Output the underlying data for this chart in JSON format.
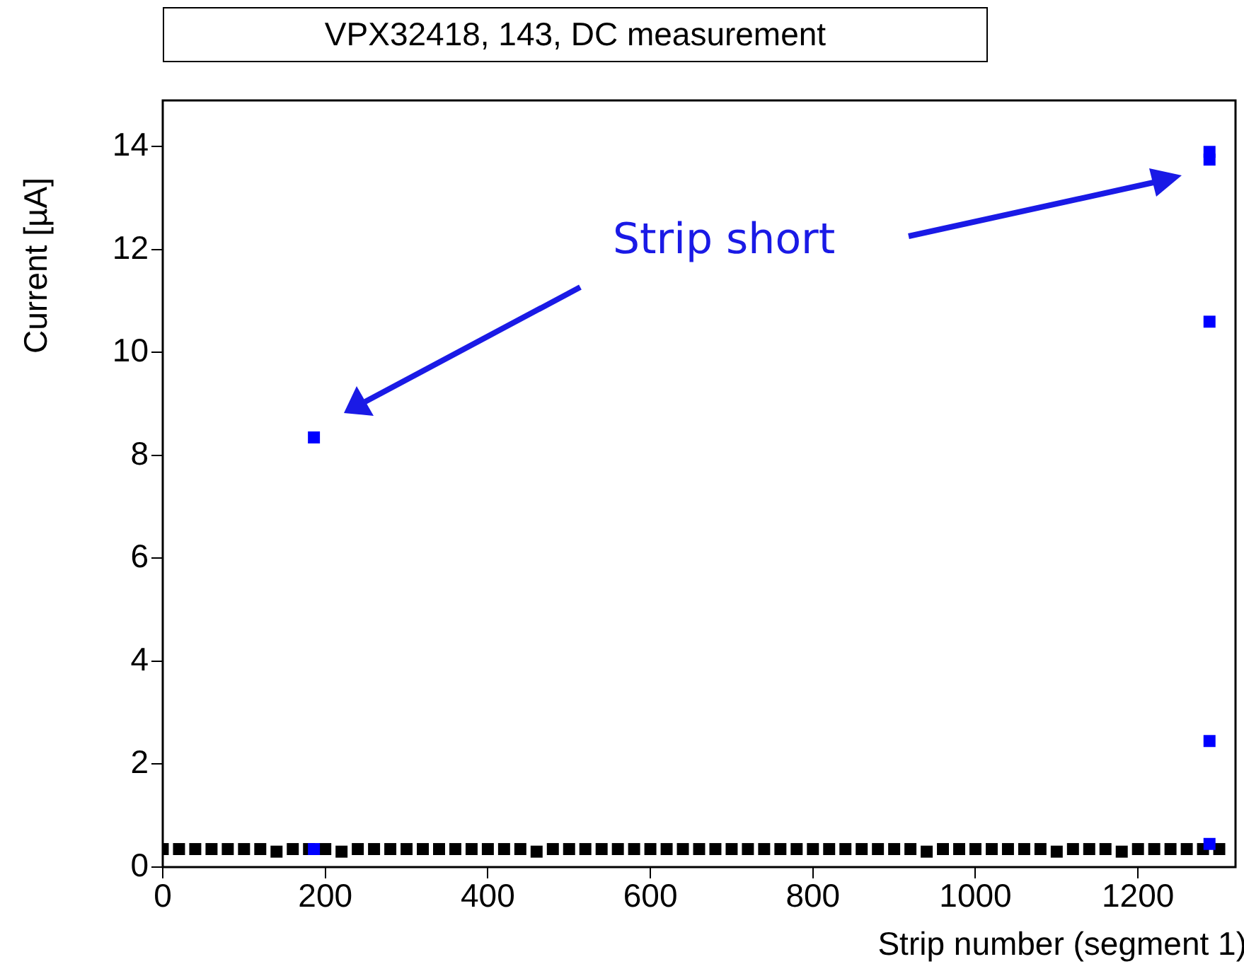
{
  "chart_data": {
    "type": "scatter",
    "title": "VPX32418, 143, DC measurement",
    "xlabel": "Strip number (segment 1)",
    "ylabel": "Current [µA]",
    "annotations": [
      "Strip short"
    ],
    "xlim": [
      0,
      1320
    ],
    "xticks": [
      0,
      200,
      400,
      600,
      800,
      1000,
      1200
    ],
    "ylim": [
      0,
      14.9
    ],
    "yticks": [
      0,
      2,
      4,
      6,
      8,
      10,
      12,
      14
    ],
    "grid": false,
    "legend": false,
    "marker": "square",
    "series": [
      {
        "color": "#000000",
        "x": [
          0,
          20,
          40,
          60,
          80,
          100,
          120,
          140,
          160,
          180,
          200,
          220,
          240,
          260,
          280,
          300,
          320,
          340,
          360,
          380,
          400,
          420,
          440,
          460,
          480,
          500,
          520,
          540,
          560,
          580,
          600,
          620,
          640,
          660,
          680,
          700,
          720,
          740,
          760,
          780,
          800,
          820,
          840,
          860,
          880,
          900,
          920,
          940,
          960,
          980,
          1000,
          1020,
          1040,
          1060,
          1080,
          1100,
          1120,
          1140,
          1160,
          1180,
          1200,
          1220,
          1240,
          1260,
          1280,
          1300
        ],
        "values": [
          0.35,
          0.35,
          0.35,
          0.35,
          0.35,
          0.35,
          0.35,
          0.3,
          0.35,
          0.35,
          0.35,
          0.3,
          0.35,
          0.35,
          0.35,
          0.35,
          0.35,
          0.35,
          0.35,
          0.35,
          0.35,
          0.35,
          0.35,
          0.3,
          0.35,
          0.35,
          0.35,
          0.35,
          0.35,
          0.35,
          0.35,
          0.35,
          0.35,
          0.35,
          0.35,
          0.35,
          0.35,
          0.35,
          0.35,
          0.35,
          0.35,
          0.35,
          0.35,
          0.35,
          0.35,
          0.35,
          0.35,
          0.3,
          0.35,
          0.35,
          0.35,
          0.35,
          0.35,
          0.35,
          0.35,
          0.3,
          0.35,
          0.35,
          0.35,
          0.3,
          0.35,
          0.35,
          0.35,
          0.35,
          0.35,
          0.35
        ]
      },
      {
        "color": "#0000ff",
        "x": [
          186,
          186,
          1288,
          1288,
          1288,
          1288,
          1288
        ],
        "values": [
          8.35,
          0.35,
          13.9,
          13.75,
          10.6,
          2.45,
          0.45
        ]
      }
    ]
  }
}
